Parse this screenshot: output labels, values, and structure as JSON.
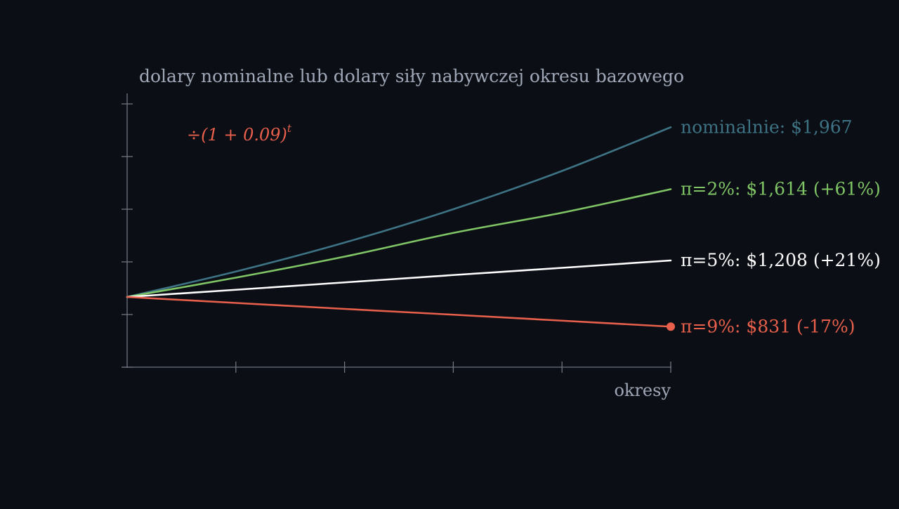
{
  "chart_data": {
    "type": "line",
    "title": "dolary nominalne lub dolary siły nabywczej okresu bazowego",
    "xlabel": "okresy",
    "ylabel": "",
    "x": [
      0,
      1,
      2,
      3,
      4,
      5
    ],
    "xlim": [
      0,
      5
    ],
    "ylim": [
      600,
      2100
    ],
    "y_ticks": [
      600,
      900,
      1200,
      1500,
      1800
    ],
    "grid": false,
    "annotation": {
      "prefix": "÷(1 + 0.09)",
      "superscript": "t",
      "color": "#e8604c"
    },
    "series": [
      {
        "key": "nominal",
        "label": "nominalnie: $1,967",
        "color": "#3d7384",
        "values": [
          1000,
          1145,
          1310,
          1500,
          1718,
          1967
        ],
        "endpoint_marker": false
      },
      {
        "key": "pi2",
        "label": "π=2%: $1,614 (+61%)",
        "color": "#7fc465",
        "values": [
          1000,
          1110,
          1230,
          1365,
          1480,
          1614
        ],
        "endpoint_marker": false
      },
      {
        "key": "pi5",
        "label": "π=5%: $1,208 (+21%)",
        "color": "#ffffff",
        "values": [
          1000,
          1041,
          1083,
          1125,
          1166,
          1208
        ],
        "endpoint_marker": false
      },
      {
        "key": "pi9",
        "label": "π=9%: $831 (-17%)",
        "color": "#e8604c",
        "values": [
          1000,
          966,
          932,
          899,
          865,
          831
        ],
        "endpoint_marker": true
      }
    ]
  }
}
